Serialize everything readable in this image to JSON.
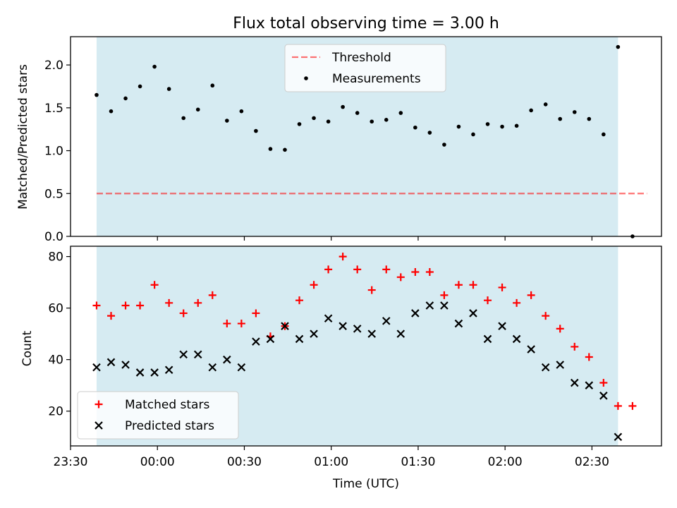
{
  "figure": {
    "title": "Flux total observing time = 3.00 h"
  },
  "colors": {
    "shade": "#add8e6",
    "threshold": "#ff0000",
    "measurement": "#000000",
    "matched": "#ff0000",
    "predicted": "#000000"
  },
  "chart_data": [
    {
      "type": "scatter",
      "title": "Flux total observing time = 3.00 h",
      "xlabel": "",
      "ylabel": "Matched/Predicted stars",
      "xlim": [
        "23:30",
        "02:54"
      ],
      "ylim": [
        0,
        2.33
      ],
      "yticks": [
        0.0,
        0.5,
        1.0,
        1.5,
        2.0
      ],
      "ytick_labels": [
        "0.0",
        "0.5",
        "1.0",
        "1.5",
        "2.0"
      ],
      "xticks": [
        "00:00",
        "00:30",
        "01:00",
        "01:30",
        "02:00",
        "02:30"
      ],
      "grid": false,
      "legend": "upper-center",
      "shaded_span": [
        "23:39",
        "02:39"
      ],
      "threshold": {
        "name": "Threshold",
        "value": 0.5,
        "from": "23:39",
        "to": "02:49",
        "style": "dashed"
      },
      "series": [
        {
          "name": "Measurements",
          "x": [
            "23:39",
            "23:44",
            "23:49",
            "23:54",
            "23:59",
            "00:04",
            "00:09",
            "00:14",
            "00:19",
            "00:24",
            "00:29",
            "00:34",
            "00:39",
            "00:44",
            "00:49",
            "00:54",
            "00:59",
            "01:04",
            "01:09",
            "01:14",
            "01:19",
            "01:24",
            "01:29",
            "01:34",
            "01:39",
            "01:44",
            "01:49",
            "01:54",
            "01:59",
            "02:04",
            "02:09",
            "02:14",
            "02:19",
            "02:24",
            "02:29",
            "02:34",
            "02:39",
            "02:44"
          ],
          "y": [
            1.65,
            1.46,
            1.61,
            1.75,
            1.98,
            1.72,
            1.38,
            1.48,
            1.76,
            1.35,
            1.46,
            1.23,
            1.02,
            1.01,
            1.31,
            1.38,
            1.34,
            1.51,
            1.44,
            1.34,
            1.36,
            1.44,
            1.27,
            1.21,
            1.07,
            1.28,
            1.19,
            1.31,
            1.28,
            1.29,
            1.47,
            1.54,
            1.37,
            1.45,
            1.37,
            1.19,
            2.21,
            0.0
          ]
        }
      ]
    },
    {
      "type": "scatter",
      "title": "",
      "xlabel": "Time (UTC)",
      "ylabel": "Count",
      "xlim": [
        "23:30",
        "02:54"
      ],
      "ylim": [
        6.5,
        84
      ],
      "yticks": [
        20,
        40,
        60,
        80
      ],
      "ytick_labels": [
        "20",
        "40",
        "60",
        "80"
      ],
      "xticks": [
        "23:30",
        "00:00",
        "00:30",
        "01:00",
        "01:30",
        "02:00",
        "02:30"
      ],
      "xtick_labels": [
        "23:30",
        "00:00",
        "00:30",
        "01:00",
        "01:30",
        "02:00",
        "02:30"
      ],
      "grid": false,
      "legend": "lower-left",
      "shaded_span": [
        "23:39",
        "02:39"
      ],
      "series": [
        {
          "name": "Matched stars",
          "marker": "plus",
          "x": [
            "23:39",
            "23:44",
            "23:49",
            "23:54",
            "23:59",
            "00:04",
            "00:09",
            "00:14",
            "00:19",
            "00:24",
            "00:29",
            "00:34",
            "00:39",
            "00:44",
            "00:49",
            "00:54",
            "00:59",
            "01:04",
            "01:09",
            "01:14",
            "01:19",
            "01:24",
            "01:29",
            "01:34",
            "01:39",
            "01:44",
            "01:49",
            "01:54",
            "01:59",
            "02:04",
            "02:09",
            "02:14",
            "02:19",
            "02:24",
            "02:29",
            "02:34",
            "02:39",
            "02:44"
          ],
          "y": [
            61,
            57,
            61,
            61,
            69,
            62,
            58,
            62,
            65,
            54,
            54,
            58,
            49,
            53,
            63,
            69,
            75,
            80,
            75,
            67,
            75,
            72,
            74,
            74,
            65,
            69,
            69,
            63,
            68,
            62,
            65,
            57,
            52,
            45,
            41,
            31,
            22,
            22
          ]
        },
        {
          "name": "Predicted stars",
          "marker": "x",
          "x": [
            "23:39",
            "23:44",
            "23:49",
            "23:54",
            "23:59",
            "00:04",
            "00:09",
            "00:14",
            "00:19",
            "00:24",
            "00:29",
            "00:34",
            "00:39",
            "00:44",
            "00:49",
            "00:54",
            "00:59",
            "01:04",
            "01:09",
            "01:14",
            "01:19",
            "01:24",
            "01:29",
            "01:34",
            "01:39",
            "01:44",
            "01:49",
            "01:54",
            "01:59",
            "02:04",
            "02:09",
            "02:14",
            "02:19",
            "02:24",
            "02:29",
            "02:34",
            "02:39"
          ],
          "y": [
            37,
            39,
            38,
            35,
            35,
            36,
            42,
            42,
            37,
            40,
            37,
            47,
            48,
            53,
            48,
            50,
            56,
            53,
            52,
            50,
            55,
            50,
            58,
            61,
            61,
            54,
            58,
            48,
            53,
            48,
            44,
            37,
            38,
            31,
            30,
            26,
            10
          ]
        }
      ]
    }
  ]
}
